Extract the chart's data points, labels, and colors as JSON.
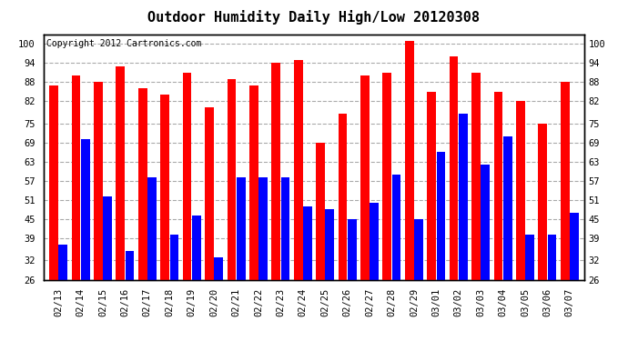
{
  "title": "Outdoor Humidity Daily High/Low 20120308",
  "copyright": "Copyright 2012 Cartronics.com",
  "categories": [
    "02/13",
    "02/14",
    "02/15",
    "02/16",
    "02/17",
    "02/18",
    "02/19",
    "02/20",
    "02/21",
    "02/22",
    "02/23",
    "02/24",
    "02/25",
    "02/26",
    "02/27",
    "02/28",
    "02/29",
    "03/01",
    "03/02",
    "03/03",
    "03/04",
    "03/05",
    "03/06",
    "03/07"
  ],
  "high_values": [
    87,
    90,
    88,
    93,
    86,
    84,
    91,
    80,
    89,
    87,
    94,
    95,
    69,
    78,
    90,
    91,
    101,
    85,
    96,
    91,
    85,
    82,
    75,
    88
  ],
  "low_values": [
    37,
    70,
    52,
    35,
    58,
    40,
    46,
    33,
    58,
    58,
    58,
    49,
    48,
    45,
    50,
    59,
    45,
    66,
    78,
    62,
    71,
    40,
    40,
    47
  ],
  "high_color": "#ff0000",
  "low_color": "#0000ff",
  "bg_color": "#ffffff",
  "plot_bg_color": "#ffffff",
  "grid_color": "#aaaaaa",
  "border_color": "#000000",
  "yticks": [
    26,
    32,
    39,
    45,
    51,
    57,
    63,
    69,
    75,
    82,
    88,
    94,
    100
  ],
  "ymin": 26,
  "ymax": 103,
  "title_fontsize": 11,
  "tick_fontsize": 7.5,
  "copyright_fontsize": 7
}
